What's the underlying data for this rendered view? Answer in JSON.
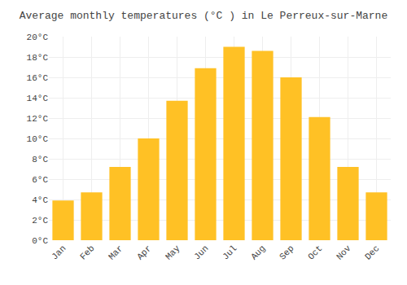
{
  "chart_data": {
    "type": "bar",
    "title": "Average monthly temperatures (°C ) in Le Perreux-sur-Marne",
    "categories": [
      "Jan",
      "Feb",
      "Mar",
      "Apr",
      "May",
      "Jun",
      "Jul",
      "Aug",
      "Sep",
      "Oct",
      "Nov",
      "Dec"
    ],
    "values": [
      3.9,
      4.7,
      7.2,
      10.0,
      13.7,
      16.9,
      19.0,
      18.6,
      16.0,
      12.1,
      7.2,
      4.7
    ],
    "color": "#FFC125",
    "ylim": [
      0,
      20
    ],
    "yticks": [
      {
        "value": 0,
        "label": "0°C"
      },
      {
        "value": 2,
        "label": "2°C"
      },
      {
        "value": 4,
        "label": "4°C"
      },
      {
        "value": 6,
        "label": "6°C"
      },
      {
        "value": 8,
        "label": "8°C"
      },
      {
        "value": 10,
        "label": "10°C"
      },
      {
        "value": 12,
        "label": "12°C"
      },
      {
        "value": 14,
        "label": "14°C"
      },
      {
        "value": 16,
        "label": "16°C"
      },
      {
        "value": 18,
        "label": "18°C"
      },
      {
        "value": 20,
        "label": "20°C"
      }
    ],
    "grid": true
  }
}
